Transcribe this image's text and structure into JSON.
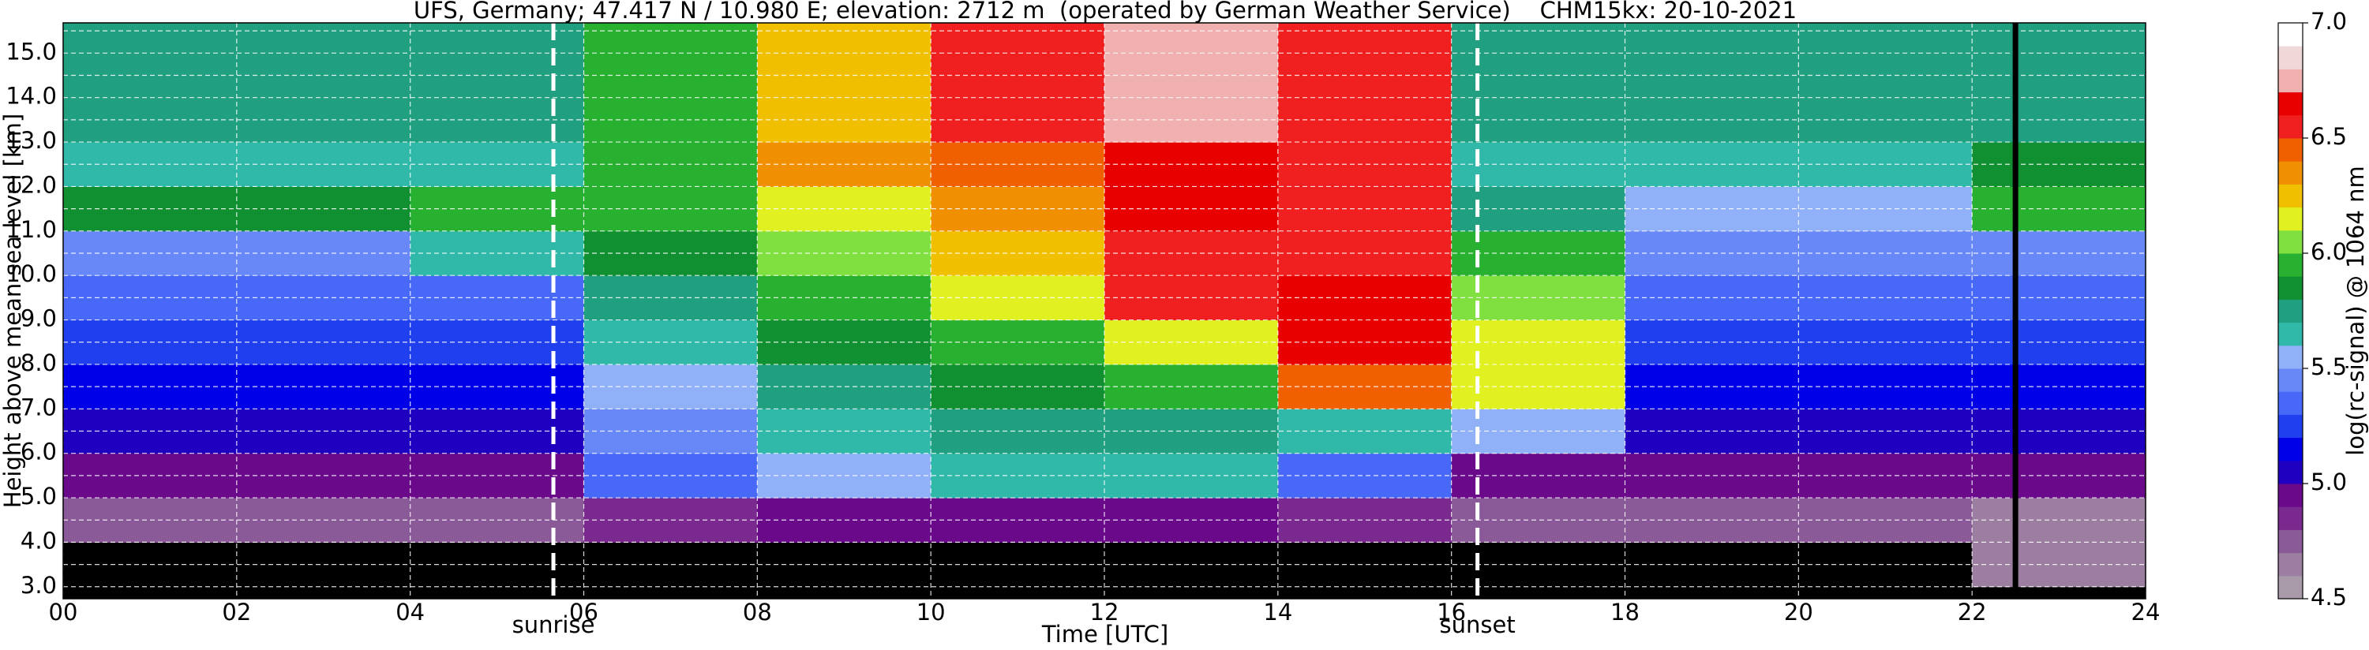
{
  "chart_data": {
    "type": "heatmap",
    "title": "UFS, Germany; 47.417 N / 10.980 E; elevation: 2712 m  (operated by German Weather Service)    CHM15kx: 20-10-2021",
    "xlabel": "Time [UTC]",
    "ylabel": "Height above mean sea level [km]",
    "colorbar_label": "log(rc-signal) @ 1064 nm",
    "xlim": [
      0,
      24
    ],
    "ylim": [
      2.73,
      15.68
    ],
    "xticks": [
      {
        "value": 0,
        "label": "00"
      },
      {
        "value": 2,
        "label": "02"
      },
      {
        "value": 4,
        "label": "04"
      },
      {
        "value": 6,
        "label": "06"
      },
      {
        "value": 8,
        "label": "08"
      },
      {
        "value": 10,
        "label": "10"
      },
      {
        "value": 12,
        "label": "12"
      },
      {
        "value": 14,
        "label": "14"
      },
      {
        "value": 16,
        "label": "16"
      },
      {
        "value": 18,
        "label": "18"
      },
      {
        "value": 20,
        "label": "20"
      },
      {
        "value": 22,
        "label": "22"
      },
      {
        "value": 24,
        "label": "24"
      }
    ],
    "yticks": [
      {
        "value": 3,
        "label": "3.0"
      },
      3.5,
      {
        "value": 4,
        "label": "4.0"
      },
      4.5,
      {
        "value": 5,
        "label": "5.0"
      },
      5.5,
      {
        "value": 6,
        "label": "6.0"
      },
      6.5,
      {
        "value": 7,
        "label": "7.0"
      },
      7.5,
      {
        "value": 8,
        "label": "8.0"
      },
      8.5,
      {
        "value": 9,
        "label": "9.0"
      },
      9.5,
      {
        "value": 10,
        "label": "10.0"
      },
      10.5,
      {
        "value": 11,
        "label": "11.0"
      },
      11.5,
      {
        "value": 12,
        "label": "12.0"
      },
      12.5,
      {
        "value": 13,
        "label": "13.0"
      },
      13.5,
      {
        "value": 14,
        "label": "14.0"
      },
      14.5,
      {
        "value": 15,
        "label": "15.0"
      },
      15.5
    ],
    "grid": true,
    "x_edges": [
      0,
      2,
      4,
      6,
      8,
      10,
      12,
      14,
      16,
      18,
      20,
      22,
      24
    ],
    "y_edges": [
      3,
      4,
      5,
      6,
      7,
      8,
      9,
      10,
      11,
      12,
      13,
      14,
      15,
      16
    ],
    "z": [
      [
        4.3,
        4.3,
        4.3,
        4.3,
        4.3,
        4.3,
        4.3,
        4.3,
        4.3,
        4.3,
        4.3,
        4.6
      ],
      [
        4.7,
        4.7,
        4.7,
        4.8,
        4.9,
        4.9,
        4.9,
        4.8,
        4.7,
        4.7,
        4.7,
        4.6
      ],
      [
        4.9,
        4.9,
        4.9,
        5.3,
        5.5,
        5.6,
        5.6,
        5.3,
        4.9,
        4.9,
        4.9,
        4.9
      ],
      [
        5.0,
        5.0,
        5.0,
        5.4,
        5.6,
        5.7,
        5.7,
        5.6,
        5.5,
        5.0,
        5.0,
        5.0
      ],
      [
        5.1,
        5.1,
        5.1,
        5.5,
        5.7,
        5.8,
        5.9,
        6.4,
        6.1,
        5.1,
        5.1,
        5.1
      ],
      [
        5.2,
        5.2,
        5.2,
        5.6,
        5.8,
        5.9,
        6.1,
        6.6,
        6.1,
        5.2,
        5.2,
        5.2
      ],
      [
        5.3,
        5.3,
        5.3,
        5.7,
        5.9,
        6.1,
        6.5,
        6.6,
        6.0,
        5.3,
        5.3,
        5.3
      ],
      [
        5.4,
        5.4,
        5.6,
        5.8,
        6.0,
        6.2,
        6.5,
        6.5,
        5.9,
        5.4,
        5.4,
        5.4
      ],
      [
        5.8,
        5.8,
        5.9,
        5.9,
        6.1,
        6.3,
        6.6,
        6.5,
        5.7,
        5.5,
        5.5,
        5.9
      ],
      [
        5.6,
        5.6,
        5.6,
        5.9,
        6.3,
        6.4,
        6.6,
        6.5,
        5.6,
        5.6,
        5.6,
        5.8
      ],
      [
        5.7,
        5.7,
        5.7,
        5.9,
        6.2,
        6.5,
        6.7,
        6.5,
        5.7,
        5.7,
        5.7,
        5.7
      ],
      [
        5.7,
        5.7,
        5.7,
        5.9,
        6.2,
        6.5,
        6.7,
        6.5,
        5.7,
        5.7,
        5.7,
        5.7
      ],
      [
        5.7,
        5.7,
        5.7,
        5.9,
        6.2,
        6.5,
        6.7,
        6.5,
        5.7,
        5.7,
        5.7,
        5.7
      ]
    ],
    "clim": [
      4.5,
      7.0
    ],
    "colorbar_ticks": [
      4.5,
      {
        "value": 5.0,
        "label": "5.0"
      },
      5.5,
      {
        "value": 6.0,
        "label": "6.0"
      },
      6.5,
      {
        "value": 7.0,
        "label": "7.0"
      }
    ],
    "colormap": [
      "#a89aa8",
      "#9c7fa0",
      "#8a5a98",
      "#7a2a8e",
      "#6a0a8a",
      "#2000c0",
      "#0000e8",
      "#2040f0",
      "#4868f8",
      "#6888f8",
      "#90b0f8",
      "#30b8a8",
      "#20a080",
      "#109030",
      "#28b030",
      "#80e040",
      "#e0f020",
      "#f0c000",
      "#f09000",
      "#f06000",
      "#f02020",
      "#e80000",
      "#f0b0b0",
      "#f0d8d8",
      "#ffffff"
    ],
    "under_color": "#000000",
    "annotations": [
      {
        "text": "sunrise",
        "x": 5.65
      },
      {
        "text": "sunset",
        "x": 16.3
      }
    ],
    "black_line_x": 22.5
  }
}
